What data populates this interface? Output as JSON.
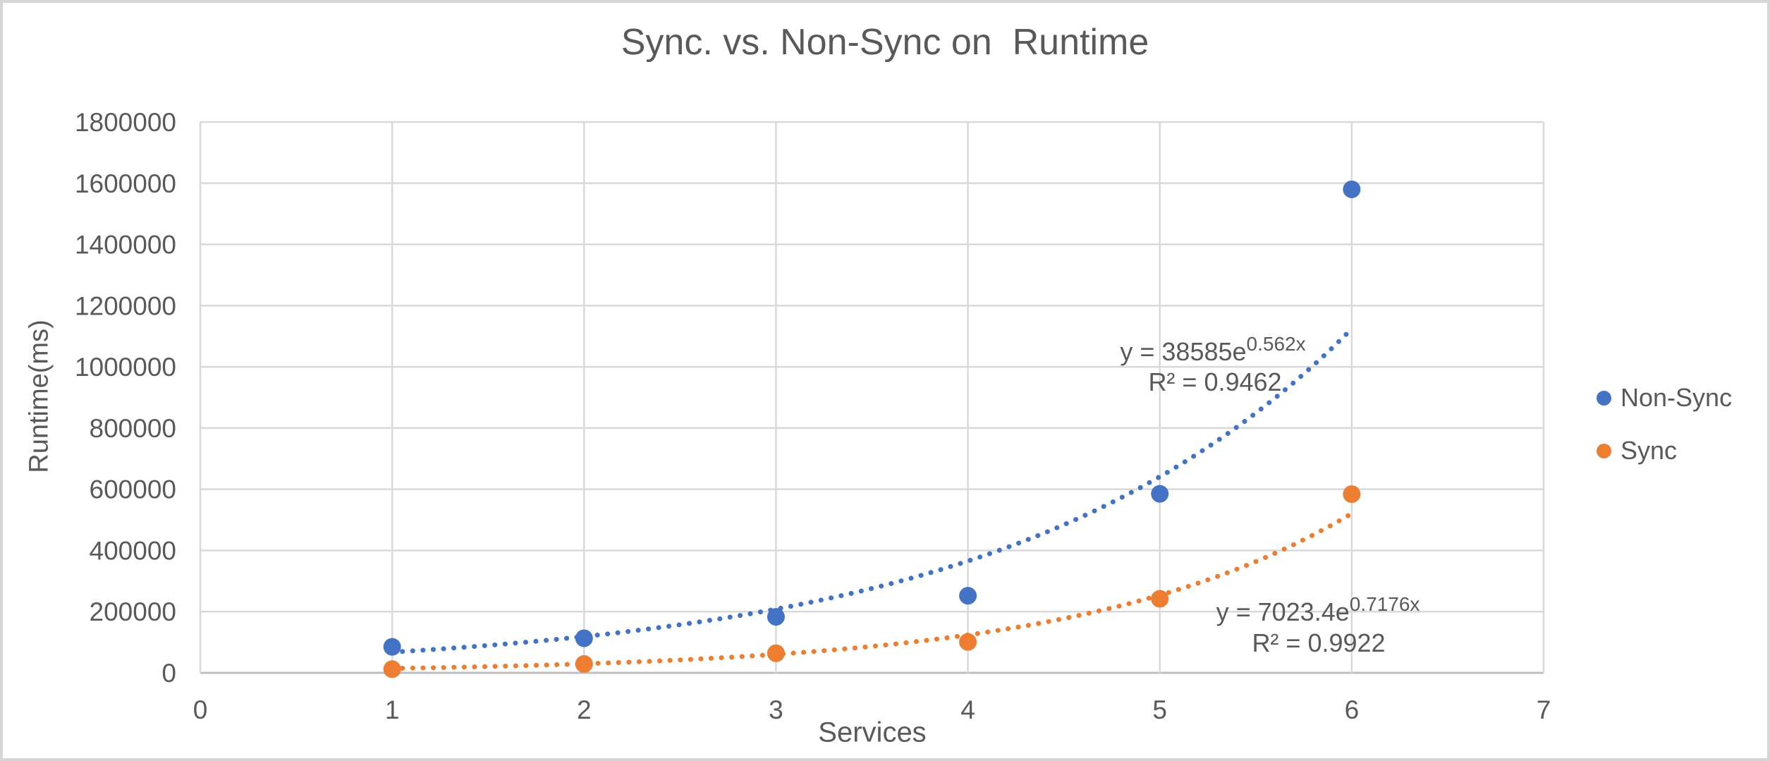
{
  "title": "Sync. vs. Non-Sync on  Runtime",
  "colors": {
    "non_sync": "#4472C4",
    "sync": "#ED7D31",
    "text": "#595959",
    "gridline": "#D9D9D9",
    "axis_line": "#BFBFBF",
    "background": "#FFFFFF",
    "border": "#D6D6D6"
  },
  "chart_data": {
    "type": "scatter",
    "title": "Sync. vs. Non-Sync on  Runtime",
    "xlabel": "Services",
    "ylabel": "Runtime(ms)",
    "xlim": [
      0,
      7
    ],
    "ylim": [
      0,
      1800000
    ],
    "x_ticks": [
      0,
      1,
      2,
      3,
      4,
      5,
      6,
      7
    ],
    "y_ticks": [
      0,
      200000,
      400000,
      600000,
      800000,
      1000000,
      1200000,
      1400000,
      1600000,
      1800000
    ],
    "grid": true,
    "legend_position": "right",
    "series": [
      {
        "name": "Non-Sync",
        "color": "#4472C4",
        "x": [
          1,
          2,
          3,
          4,
          5,
          6
        ],
        "y": [
          85000,
          113000,
          183000,
          252000,
          585000,
          1580000
        ],
        "trendline": {
          "type": "exponential",
          "a": 38585,
          "b": 0.562,
          "x_range": [
            1,
            6
          ],
          "base": "y = 38585e",
          "exponent": "0.562x",
          "r2": "R² = 0.9462"
        }
      },
      {
        "name": "Sync",
        "color": "#ED7D31",
        "x": [
          1,
          2,
          3,
          4,
          5,
          6
        ],
        "y": [
          12000,
          29000,
          64000,
          101000,
          242000,
          584000
        ],
        "trendline": {
          "type": "exponential",
          "a": 7023.4,
          "b": 0.7176,
          "x_range": [
            1,
            6
          ],
          "base": "y = 7023.4e",
          "exponent": "0.7176x",
          "r2": "R² = 0.9922"
        }
      }
    ]
  }
}
